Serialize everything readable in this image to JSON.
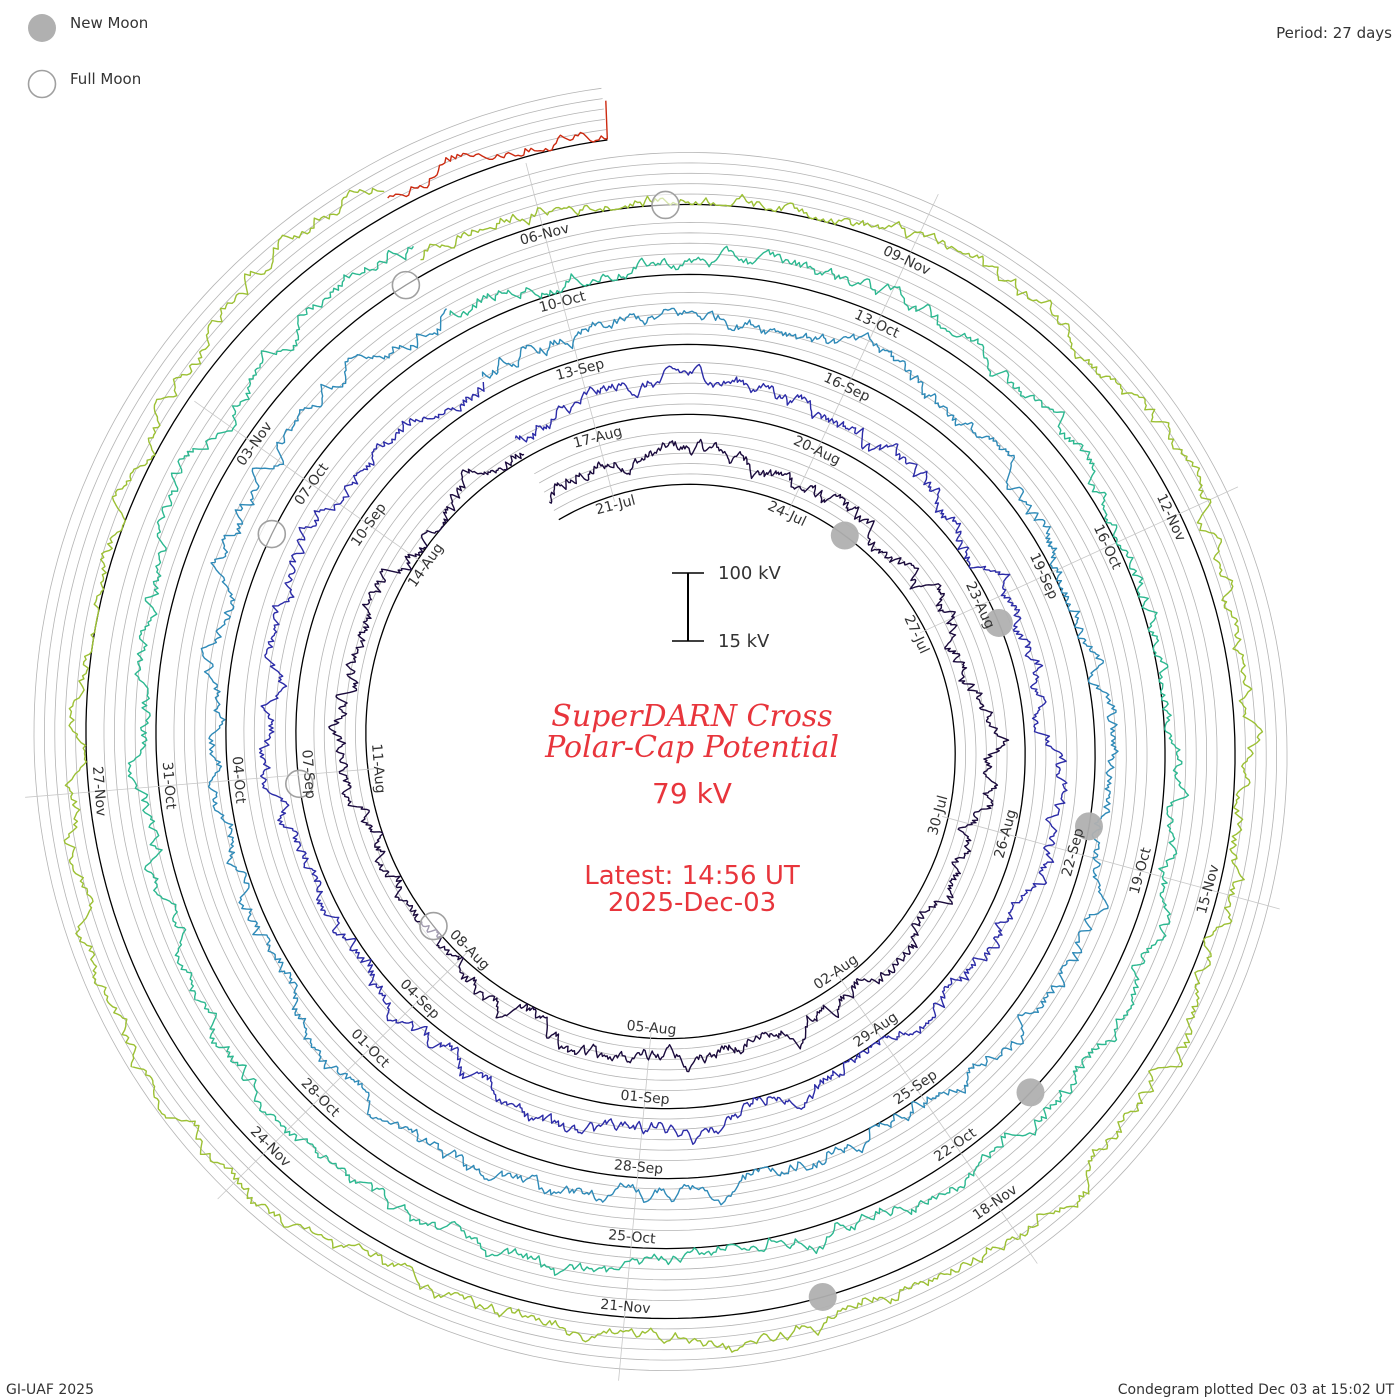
{
  "legend": {
    "new_moon_label": "New Moon",
    "full_moon_label": "Full Moon"
  },
  "period_label": "Period: 27 days",
  "scale_bar": {
    "top_label": "100 kV",
    "bottom_label": "15 kV"
  },
  "title": {
    "line1": "SuperDARN Cross",
    "line2": "Polar-Cap Potential",
    "current_value": "79 kV",
    "latest_label": "Latest: 14:56 UT",
    "latest_date": "2025-Dec-03"
  },
  "footer": {
    "credit": "GI-UAF 2025",
    "plotted": "Condegram plotted Dec 03 at 15:02 UT"
  },
  "colors": {
    "text": "#333333",
    "title": "#e8353c",
    "grid_black": "#000000",
    "grid_gray": "#b4b4b4",
    "moon_fill": "#b0b0b0",
    "moon_outline": "#a0a0a0"
  },
  "chart_data": {
    "type": "condegram (spiral time series)",
    "title": "SuperDARN Cross Polar-Cap Potential",
    "period_days": 27,
    "start_date": "2025-07-20",
    "end_date": "2025-12-03",
    "value_scale_kV": [
      15,
      100
    ],
    "current_value_kV": 79,
    "turns": [
      {
        "turn": 0,
        "color": "#1a0a3c",
        "from": "2025-07-20",
        "to": "2025-08-15"
      },
      {
        "turn": 1,
        "color": "#2c2ca8",
        "from": "2025-08-16",
        "to": "2025-09-11"
      },
      {
        "turn": 2,
        "color": "#2e8ab8",
        "from": "2025-09-12",
        "to": "2025-10-08"
      },
      {
        "turn": 3,
        "color": "#2cb890",
        "from": "2025-10-09",
        "to": "2025-11-04"
      },
      {
        "turn": 4,
        "color": "#9cc034",
        "from": "2025-11-05",
        "to": "2025-12-01"
      },
      {
        "turn": 5,
        "color": "#cc2a10",
        "from": "2025-12-02",
        "to": "2025-12-03"
      }
    ],
    "date_ticks": [
      {
        "label": "21-Jul",
        "turn": 0,
        "day": 1
      },
      {
        "label": "24-Jul",
        "turn": 0,
        "day": 4
      },
      {
        "label": "27-Jul",
        "turn": 0,
        "day": 7
      },
      {
        "label": "30-Jul",
        "turn": 0,
        "day": 10
      },
      {
        "label": "02-Aug",
        "turn": 0,
        "day": 13
      },
      {
        "label": "05-Aug",
        "turn": 0,
        "day": 16
      },
      {
        "label": "08-Aug",
        "turn": 0,
        "day": 19
      },
      {
        "label": "11-Aug",
        "turn": 0,
        "day": 22
      },
      {
        "label": "14-Aug",
        "turn": 0,
        "day": 25
      },
      {
        "label": "17-Aug",
        "turn": 1,
        "day": 1
      },
      {
        "label": "20-Aug",
        "turn": 1,
        "day": 4
      },
      {
        "label": "23-Aug",
        "turn": 1,
        "day": 7
      },
      {
        "label": "26-Aug",
        "turn": 1,
        "day": 10
      },
      {
        "label": "29-Aug",
        "turn": 1,
        "day": 13
      },
      {
        "label": "01-Sep",
        "turn": 1,
        "day": 16
      },
      {
        "label": "04-Sep",
        "turn": 1,
        "day": 19
      },
      {
        "label": "07-Sep",
        "turn": 1,
        "day": 22
      },
      {
        "label": "10-Sep",
        "turn": 1,
        "day": 25
      },
      {
        "label": "13-Sep",
        "turn": 2,
        "day": 1
      },
      {
        "label": "16-Sep",
        "turn": 2,
        "day": 4
      },
      {
        "label": "19-Sep",
        "turn": 2,
        "day": 7
      },
      {
        "label": "22-Sep",
        "turn": 2,
        "day": 10
      },
      {
        "label": "25-Sep",
        "turn": 2,
        "day": 13
      },
      {
        "label": "28-Sep",
        "turn": 2,
        "day": 16
      },
      {
        "label": "01-Oct",
        "turn": 2,
        "day": 19
      },
      {
        "label": "04-Oct",
        "turn": 2,
        "day": 22
      },
      {
        "label": "07-Oct",
        "turn": 2,
        "day": 25
      },
      {
        "label": "10-Oct",
        "turn": 3,
        "day": 1
      },
      {
        "label": "13-Oct",
        "turn": 3,
        "day": 4
      },
      {
        "label": "16-Oct",
        "turn": 3,
        "day": 7
      },
      {
        "label": "19-Oct",
        "turn": 3,
        "day": 10
      },
      {
        "label": "22-Oct",
        "turn": 3,
        "day": 13
      },
      {
        "label": "25-Oct",
        "turn": 3,
        "day": 16
      },
      {
        "label": "28-Oct",
        "turn": 3,
        "day": 19
      },
      {
        "label": "31-Oct",
        "turn": 3,
        "day": 22
      },
      {
        "label": "03-Nov",
        "turn": 3,
        "day": 25
      },
      {
        "label": "06-Nov",
        "turn": 4,
        "day": 1
      },
      {
        "label": "09-Nov",
        "turn": 4,
        "day": 4
      },
      {
        "label": "12-Nov",
        "turn": 4,
        "day": 7
      },
      {
        "label": "15-Nov",
        "turn": 4,
        "day": 10
      },
      {
        "label": "18-Nov",
        "turn": 4,
        "day": 13
      },
      {
        "label": "21-Nov",
        "turn": 4,
        "day": 16
      },
      {
        "label": "24-Nov",
        "turn": 4,
        "day": 19
      },
      {
        "label": "27-Nov",
        "turn": 4,
        "day": 22
      }
    ],
    "new_moons": [
      {
        "turn": 0,
        "day": 5.0
      },
      {
        "turn": 1,
        "day": 7.3
      },
      {
        "turn": 2,
        "day": 9.7
      },
      {
        "turn": 3,
        "day": 12.2
      },
      {
        "turn": 4,
        "day": 14.5
      }
    ],
    "full_moons": [
      {
        "turn": 0,
        "day": 19.6
      },
      {
        "turn": 1,
        "day": 21.9
      },
      {
        "turn": 2,
        "day": 24.4
      },
      {
        "turn": 3,
        "day": 26.8
      },
      {
        "turn": 4,
        "day": 2.0
      }
    ]
  }
}
